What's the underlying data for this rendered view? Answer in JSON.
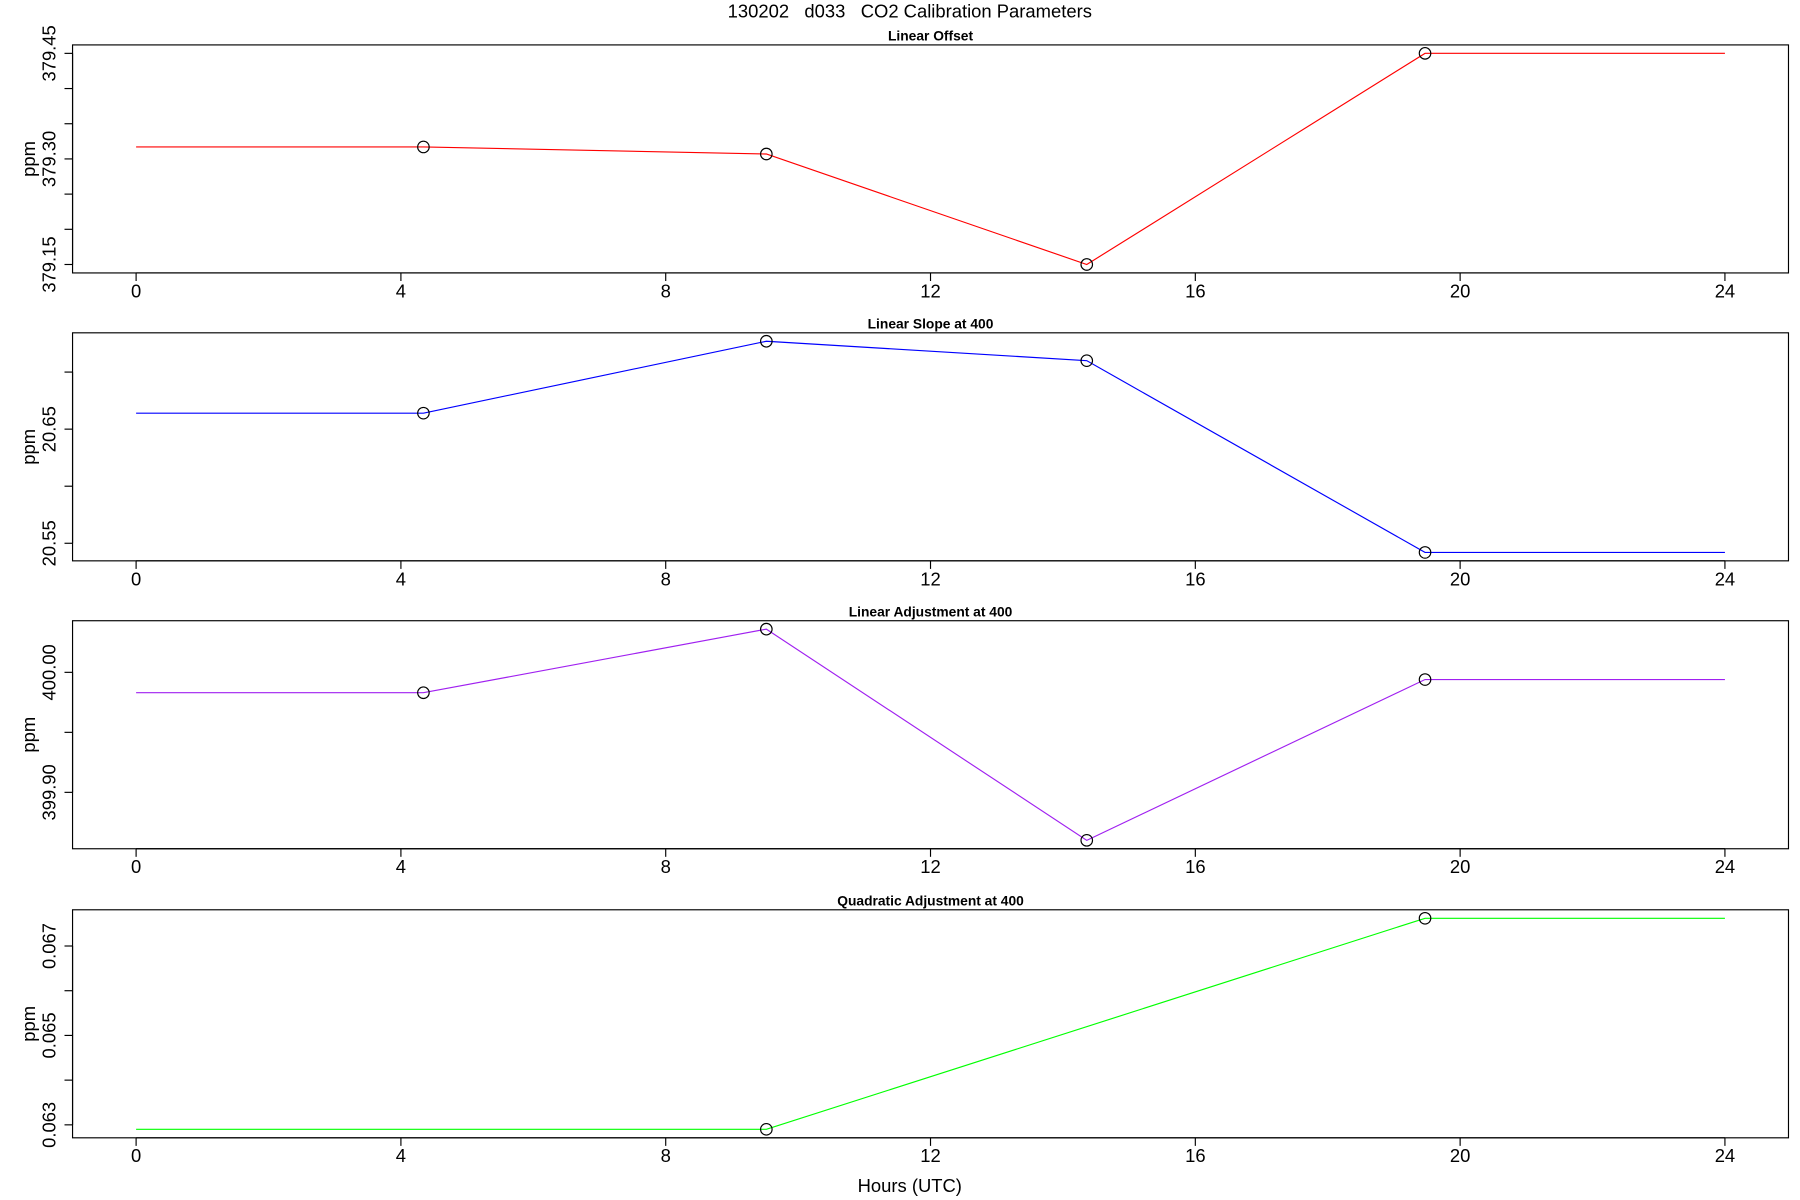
{
  "title": "130202   d033   CO2 Calibration Parameters",
  "xlabel": "Hours (UTC)",
  "chart_data": [
    {
      "type": "line",
      "title": "Linear Offset",
      "ylabel": "ppm",
      "x": [
        0,
        4.34,
        9.52,
        14.36,
        19.47,
        24
      ],
      "series": [
        {
          "color": "#ff0000",
          "values": [
            379.317,
            379.317,
            379.307,
            379.15,
            379.45,
            379.45
          ]
        }
      ],
      "xlim": [
        -0.96,
        24.96
      ],
      "xticks": [
        0,
        4,
        8,
        12,
        16,
        20,
        24
      ],
      "ylim": [
        379.138,
        379.462
      ],
      "yticks": [
        379.15,
        {
          "value": 379.2,
          "label": null
        },
        {
          "value": 379.25,
          "label": null
        },
        {
          "value": 379.3,
          "label": "379.30"
        },
        {
          "value": 379.35,
          "label": null
        },
        {
          "value": 379.4,
          "label": null
        },
        379.45
      ]
    },
    {
      "type": "line",
      "title": "Linear Slope at 400",
      "ylabel": "ppm",
      "x": [
        0,
        4.34,
        9.52,
        14.36,
        19.47,
        24
      ],
      "series": [
        {
          "color": "#0000ff",
          "values": [
            20.664,
            20.664,
            20.727,
            20.71,
            20.542,
            20.542
          ]
        }
      ],
      "xlim": [
        -0.96,
        24.96
      ],
      "xticks": [
        0,
        4,
        8,
        12,
        16,
        20,
        24
      ],
      "ylim": [
        20.5346,
        20.7344
      ],
      "yticks": [
        20.55,
        {
          "value": 20.6,
          "label": null
        },
        20.65,
        {
          "value": 20.7,
          "label": null
        }
      ]
    },
    {
      "type": "line",
      "title": "Linear Adjustment at 400",
      "ylabel": "ppm",
      "x": [
        0,
        4.34,
        9.52,
        14.36,
        19.47,
        24
      ],
      "series": [
        {
          "color": "#a020f0",
          "values": [
            399.983,
            399.983,
            400.036,
            399.86,
            399.994,
            399.994
          ]
        }
      ],
      "xlim": [
        -0.96,
        24.96
      ],
      "xticks": [
        0,
        4,
        8,
        12,
        16,
        20,
        24
      ],
      "ylim": [
        399.853,
        400.043
      ],
      "yticks": [
        {
          "value": 399.9,
          "label": "399.90"
        },
        {
          "value": 399.95,
          "label": null
        },
        {
          "value": 400,
          "label": "400.00"
        }
      ]
    },
    {
      "type": "line",
      "title": "Quadratic Adjustment at 400",
      "ylabel": "ppm",
      "x": [
        0,
        9.52,
        19.47,
        24
      ],
      "series": [
        {
          "color": "#00ff00",
          "values": [
            0.0629,
            0.0629,
            0.06762,
            0.06762
          ]
        }
      ],
      "xlim": [
        -0.96,
        24.96
      ],
      "xticks": [
        0,
        4,
        8,
        12,
        16,
        20,
        24
      ],
      "ylim": [
        0.06271,
        0.06781
      ],
      "yticks": [
        0.063,
        {
          "value": 0.064,
          "label": null
        },
        0.065,
        {
          "value": 0.066,
          "label": null
        },
        0.067
      ]
    }
  ]
}
